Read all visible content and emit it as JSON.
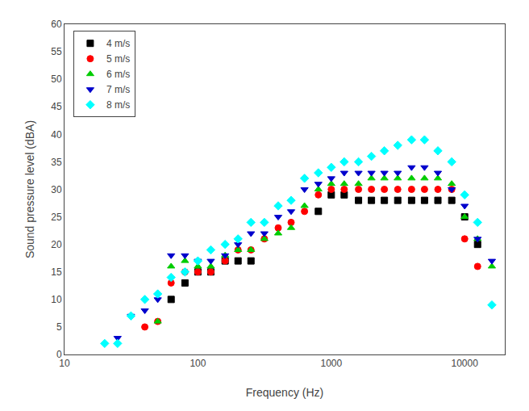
{
  "chart_data": {
    "type": "scatter",
    "xlabel": "Frequency (Hz)",
    "ylabel": "Sound pressure level (dBA)",
    "log": "x",
    "grid": false,
    "legend": "upper left",
    "xlim": [
      10,
      20000
    ],
    "xticks": [
      10,
      100,
      1000,
      10000
    ],
    "ylim": [
      0,
      60
    ],
    "yticks": [
      0,
      5,
      10,
      15,
      20,
      25,
      30,
      35,
      40,
      45,
      50,
      55,
      60
    ],
    "series": [
      {
        "name": "4 m/s",
        "color": "black",
        "marker": "square",
        "x": [
          63,
          80,
          100,
          125,
          160,
          200,
          250,
          800,
          1000,
          1250,
          1600,
          2000,
          2500,
          3150,
          4000,
          5000,
          6300,
          8000,
          10000,
          12500
        ],
        "values": [
          10,
          13,
          15,
          15,
          17,
          17,
          17,
          26,
          29,
          29,
          28,
          28,
          28,
          28,
          28,
          28,
          28,
          28,
          25,
          20
        ]
      },
      {
        "name": "5 m/s",
        "color": "red",
        "marker": "circle",
        "x": [
          40,
          50,
          63,
          80,
          100,
          125,
          160,
          200,
          250,
          315,
          400,
          500,
          630,
          800,
          1000,
          1250,
          1600,
          2000,
          2500,
          3150,
          4000,
          5000,
          6300,
          8000,
          10000,
          12500
        ],
        "values": [
          5,
          6,
          13,
          15,
          15,
          15,
          17,
          19,
          19,
          21,
          23,
          24,
          26,
          29,
          30,
          30,
          30,
          30,
          30,
          30,
          30,
          30,
          30,
          30,
          21,
          16
        ]
      },
      {
        "name": "6 m/s",
        "color": "#00cc00",
        "marker": "triangle-up",
        "x": [
          50,
          63,
          80,
          100,
          125,
          160,
          200,
          250,
          315,
          400,
          500,
          630,
          800,
          1000,
          1250,
          1600,
          2000,
          2500,
          3150,
          4000,
          5000,
          6300,
          8000,
          10000,
          12500,
          16000
        ],
        "values": [
          6,
          16,
          17,
          16,
          16,
          18,
          19,
          19,
          21,
          22,
          23,
          27,
          30,
          31,
          31,
          31,
          32,
          32,
          32,
          32,
          32,
          32,
          31,
          25,
          21,
          16
        ]
      },
      {
        "name": "7 m/s",
        "color": "#0000cc",
        "marker": "triangle-down",
        "x": [
          25,
          31.5,
          40,
          50,
          63,
          80,
          100,
          125,
          160,
          200,
          250,
          315,
          400,
          500,
          630,
          800,
          1000,
          1250,
          1600,
          2000,
          2500,
          3150,
          4000,
          5000,
          6300,
          8000,
          10000,
          12500,
          16000
        ],
        "values": [
          3,
          7,
          8,
          10,
          18,
          18,
          17,
          17,
          18,
          20,
          22,
          22,
          25,
          26,
          30,
          31,
          32,
          33,
          33,
          33,
          33,
          33,
          34,
          34,
          33,
          30,
          27,
          21,
          17
        ]
      },
      {
        "name": "8 m/s",
        "color": "cyan",
        "marker": "diamond",
        "x": [
          20,
          25,
          31.5,
          40,
          50,
          63,
          80,
          100,
          125,
          160,
          200,
          250,
          315,
          400,
          500,
          630,
          800,
          1000,
          1250,
          1600,
          2000,
          2500,
          3150,
          4000,
          5000,
          6300,
          8000,
          10000,
          12500,
          16000
        ],
        "values": [
          2,
          2,
          7,
          10,
          11,
          14,
          15,
          17,
          19,
          20,
          21,
          24,
          24,
          27,
          28,
          32,
          33,
          34,
          35,
          35,
          36,
          37,
          38,
          39,
          39,
          37,
          35,
          29,
          24,
          9
        ]
      }
    ]
  }
}
